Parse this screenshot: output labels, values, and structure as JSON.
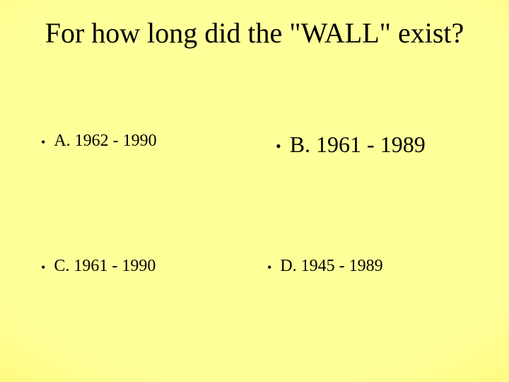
{
  "background": {
    "center_color": "#ffff9a",
    "edge_color": "#fbf560"
  },
  "title": {
    "text": "For how long did the \"WALL\" exist?",
    "font_size": 40,
    "color": "#000000",
    "font_family": "Times New Roman"
  },
  "options": {
    "bullet_char": "•",
    "a": {
      "label": "A. 1962 - 1990",
      "font_size": 24,
      "color": "#000000"
    },
    "b": {
      "label": "B. 1961 - 1989",
      "font_size": 32,
      "color": "#000000"
    },
    "c": {
      "label": "C. 1961 - 1990",
      "font_size": 24,
      "color": "#000000"
    },
    "d": {
      "label": "D. 1945 - 1989",
      "font_size": 24,
      "color": "#000000"
    }
  }
}
